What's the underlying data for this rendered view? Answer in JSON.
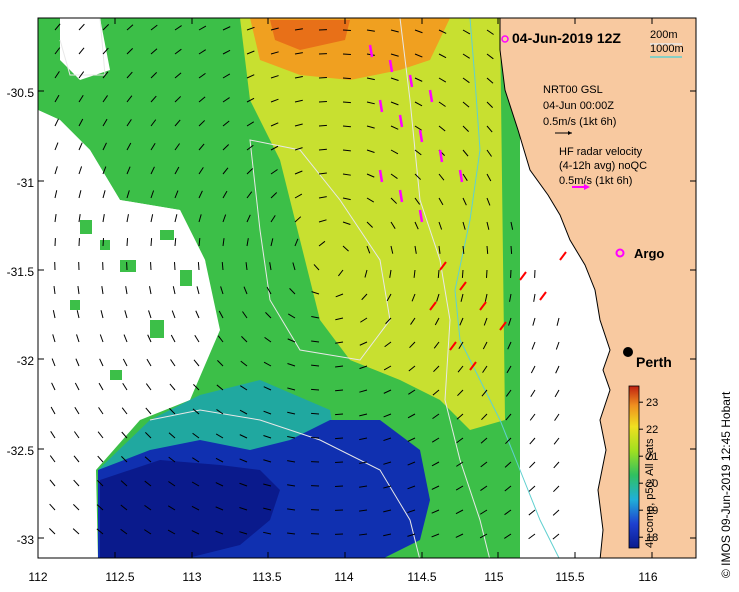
{
  "title": "04-Jun-2019 12Z",
  "contours": {
    "a": "200m",
    "b": "1000m"
  },
  "glider": {
    "line1": "NRT00 GSL",
    "line2": "04-Jun 00:00Z",
    "scale": "0.5m/s (1kt 6h)"
  },
  "hf_radar": {
    "line1": "HF radar velocity",
    "line2": "(4-12h avg) noQC",
    "scale": "0.5m/s (1kt 6h)"
  },
  "argo_label": "Argo",
  "city_label": "Perth",
  "credit": "© IMOS 09-Jun-2019 12:45 Hobart",
  "colorbar": {
    "label": "4h comp, p50, All Sats",
    "ticks": [
      "23",
      "22",
      "21",
      "20",
      "19",
      "18"
    ],
    "min": 17.6,
    "max": 23.6
  },
  "y_ticks": [
    "-30.5",
    "-31",
    "-31.5",
    "-32",
    "-32.5",
    "-33"
  ],
  "x_ticks": [
    "112",
    "112.5",
    "113",
    "113.5",
    "114",
    "114.5",
    "115",
    "115.5",
    "116"
  ],
  "colors": {
    "land": "#f8c9a0",
    "mid_sst": "#3fbf3f",
    "warm_sst": "#f0a020",
    "cold_sst": "#0a1a8c",
    "radar_vec": "#ff00ff",
    "hf_vec": "#ff0000"
  }
}
